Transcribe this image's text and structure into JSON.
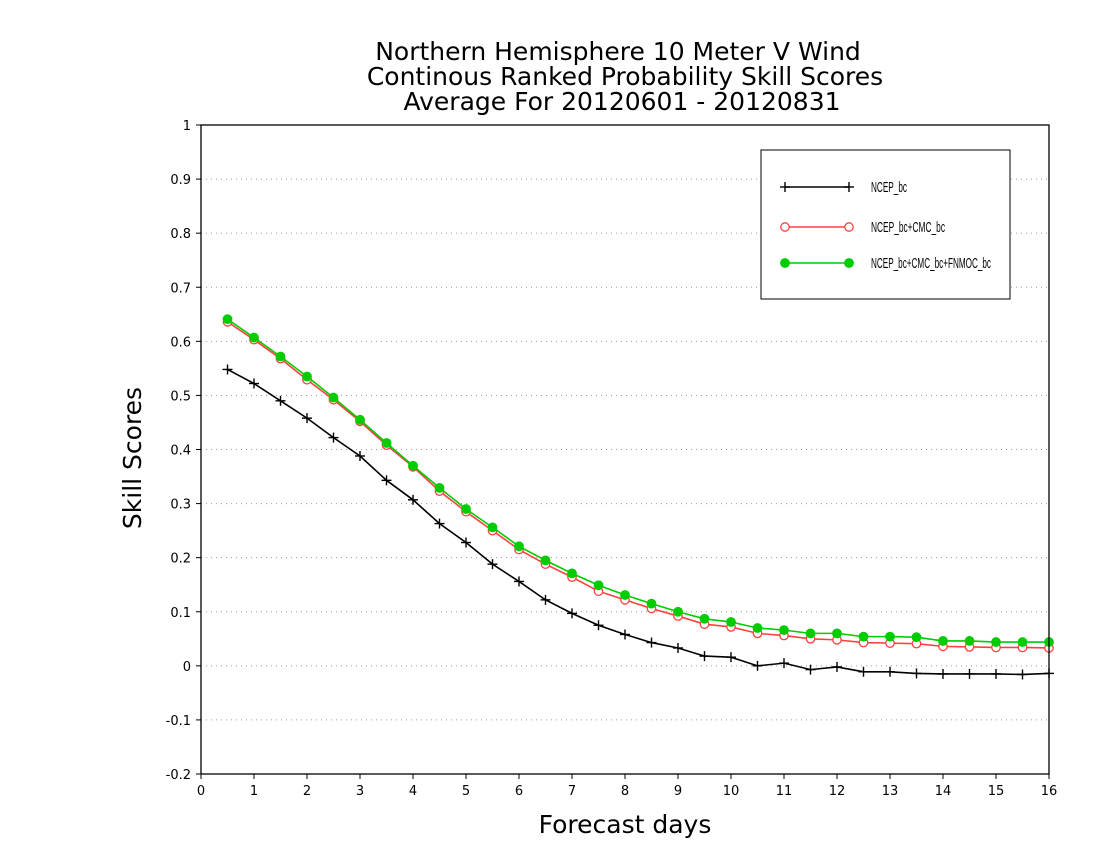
{
  "chart_data": {
    "type": "line",
    "title": [
      "Northern Hemisphere 10 Meter V Wind",
      "Continous Ranked Probability Skill Scores",
      "Average For 20120601 - 20120831"
    ],
    "xlabel": "Forecast days",
    "ylabel": "Skill Scores",
    "xlim": [
      0,
      16
    ],
    "ylim": [
      -0.2,
      1
    ],
    "xticks": [
      "0",
      "1",
      "2",
      "3",
      "4",
      "5",
      "6",
      "7",
      "8",
      "9",
      "10",
      "11",
      "12",
      "13",
      "14",
      "15",
      "16"
    ],
    "yticks": [
      "-0.2",
      "-0.1",
      "0",
      "0.1",
      "0.2",
      "0.3",
      "0.4",
      "0.5",
      "0.6",
      "0.7",
      "0.8",
      "0.9",
      "1"
    ],
    "grid": "horizontal dotted",
    "legend_position": "top-right",
    "x": [
      0.5,
      1,
      1.5,
      2,
      2.5,
      3,
      3.5,
      4,
      4.5,
      5,
      5.5,
      6,
      6.5,
      7,
      7.5,
      8,
      8.5,
      9,
      9.5,
      10,
      10.5,
      11,
      11.5,
      12,
      12.5,
      13,
      13.5,
      14,
      14.5,
      15,
      15.5,
      16
    ],
    "series": [
      {
        "name": "NCEP_bc",
        "color": "#000000",
        "marker": "plus",
        "values": [
          0.548,
          0.522,
          0.49,
          0.458,
          0.422,
          0.388,
          0.343,
          0.307,
          0.263,
          0.228,
          0.188,
          0.156,
          0.122,
          0.097,
          0.075,
          0.058,
          0.043,
          0.033,
          0.018,
          0.016,
          0.0,
          0.005,
          -0.007,
          -0.002,
          -0.011,
          -0.011,
          -0.014,
          -0.015,
          -0.015,
          -0.015,
          -0.016,
          -0.014
        ]
      },
      {
        "name": "NCEP_bc+CMC_bc",
        "color": "#ff4040",
        "marker": "open-circle",
        "values": [
          0.636,
          0.603,
          0.568,
          0.529,
          0.492,
          0.452,
          0.408,
          0.368,
          0.323,
          0.285,
          0.25,
          0.215,
          0.188,
          0.164,
          0.138,
          0.122,
          0.106,
          0.092,
          0.077,
          0.072,
          0.06,
          0.056,
          0.05,
          0.048,
          0.043,
          0.042,
          0.041,
          0.036,
          0.035,
          0.034,
          0.034,
          0.033
        ]
      },
      {
        "name": "NCEP_bc+CMC_bc+FNMOC_bc",
        "color": "#00cc00",
        "marker": "filled-circle",
        "values": [
          0.641,
          0.607,
          0.572,
          0.535,
          0.496,
          0.455,
          0.412,
          0.37,
          0.329,
          0.29,
          0.256,
          0.221,
          0.195,
          0.171,
          0.149,
          0.131,
          0.115,
          0.1,
          0.087,
          0.081,
          0.07,
          0.066,
          0.06,
          0.06,
          0.054,
          0.054,
          0.053,
          0.046,
          0.046,
          0.044,
          0.044,
          0.044
        ]
      }
    ]
  }
}
